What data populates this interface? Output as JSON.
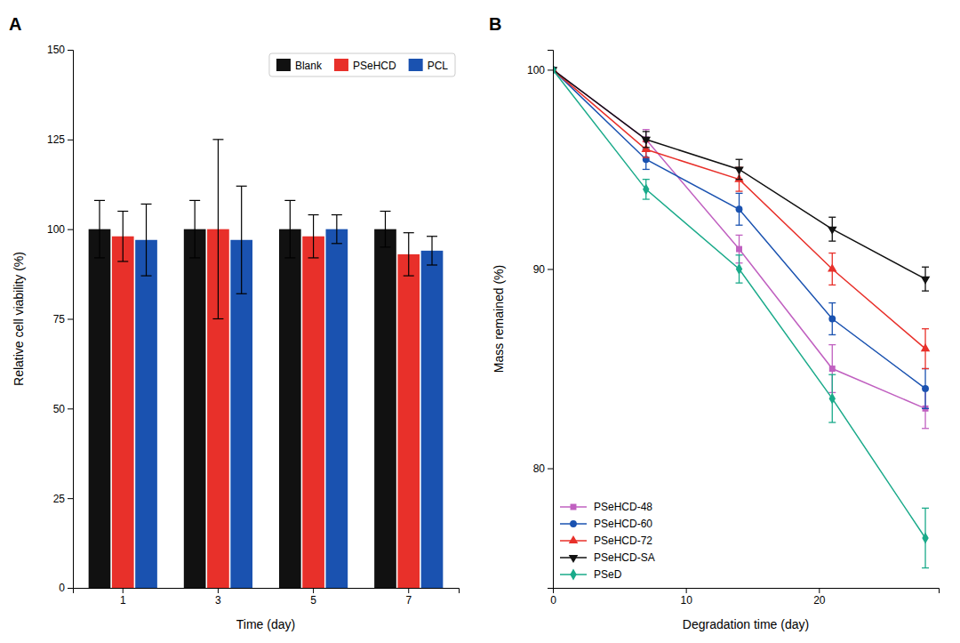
{
  "chart_data": [
    {
      "type": "bar",
      "title": "A",
      "xlabel": "Time (day)",
      "ylabel": "Relative cell viability (%)",
      "categories": [
        "1",
        "3",
        "5",
        "7"
      ],
      "series": [
        {
          "name": "Blank",
          "color": "#111111",
          "values": [
            100,
            100,
            100,
            100
          ],
          "errors": [
            8,
            8,
            8,
            5
          ]
        },
        {
          "name": "PSeHCD",
          "color": "#e8302a",
          "values": [
            98,
            100,
            98,
            93
          ],
          "errors": [
            7,
            25,
            6,
            6
          ]
        },
        {
          "name": "PCL",
          "color": "#1a52b0",
          "values": [
            97,
            97,
            100,
            94
          ],
          "errors": [
            10,
            15,
            4,
            4
          ]
        }
      ],
      "ylim": [
        0,
        150
      ],
      "yticks": [
        0,
        25,
        50,
        75,
        100,
        125,
        150
      ],
      "legend": "upper right"
    },
    {
      "type": "line",
      "title": "B",
      "xlabel": "Degradation time (day)",
      "ylabel": "Mass remained (%)",
      "x": [
        0,
        7,
        14,
        21,
        28
      ],
      "series": [
        {
          "name": "PSeHCD-48",
          "color": "#c060c0",
          "marker": "square",
          "values": [
            100,
            96.5,
            91.0,
            85.0,
            83.0
          ],
          "errors": [
            0,
            0.5,
            0.7,
            1.2,
            1.0
          ]
        },
        {
          "name": "PSeHCD-60",
          "color": "#1a52b0",
          "marker": "circle",
          "values": [
            100,
            95.5,
            93.0,
            87.5,
            84.0
          ],
          "errors": [
            0,
            0.5,
            0.8,
            0.8,
            1.0
          ]
        },
        {
          "name": "PSeHCD-72",
          "color": "#e8302a",
          "marker": "triangle-up",
          "values": [
            100,
            96.0,
            94.5,
            90.0,
            86.0
          ],
          "errors": [
            0,
            0.4,
            0.6,
            0.8,
            1.0
          ]
        },
        {
          "name": "PSeHCD-SA",
          "color": "#111111",
          "marker": "triangle-down",
          "values": [
            100,
            96.5,
            95.0,
            92.0,
            89.5
          ],
          "errors": [
            0,
            0.4,
            0.5,
            0.6,
            0.6
          ]
        },
        {
          "name": "PSeD",
          "color": "#1aaa8a",
          "marker": "diamond",
          "values": [
            100,
            94.0,
            90.0,
            83.5,
            76.5
          ],
          "errors": [
            0,
            0.5,
            0.7,
            1.2,
            1.5
          ]
        }
      ],
      "xlim": [
        0,
        29
      ],
      "xticks": [
        0,
        10,
        20
      ],
      "ylim": [
        74,
        101
      ],
      "yticks": [
        80,
        90,
        100
      ],
      "legend": "lower left"
    }
  ]
}
